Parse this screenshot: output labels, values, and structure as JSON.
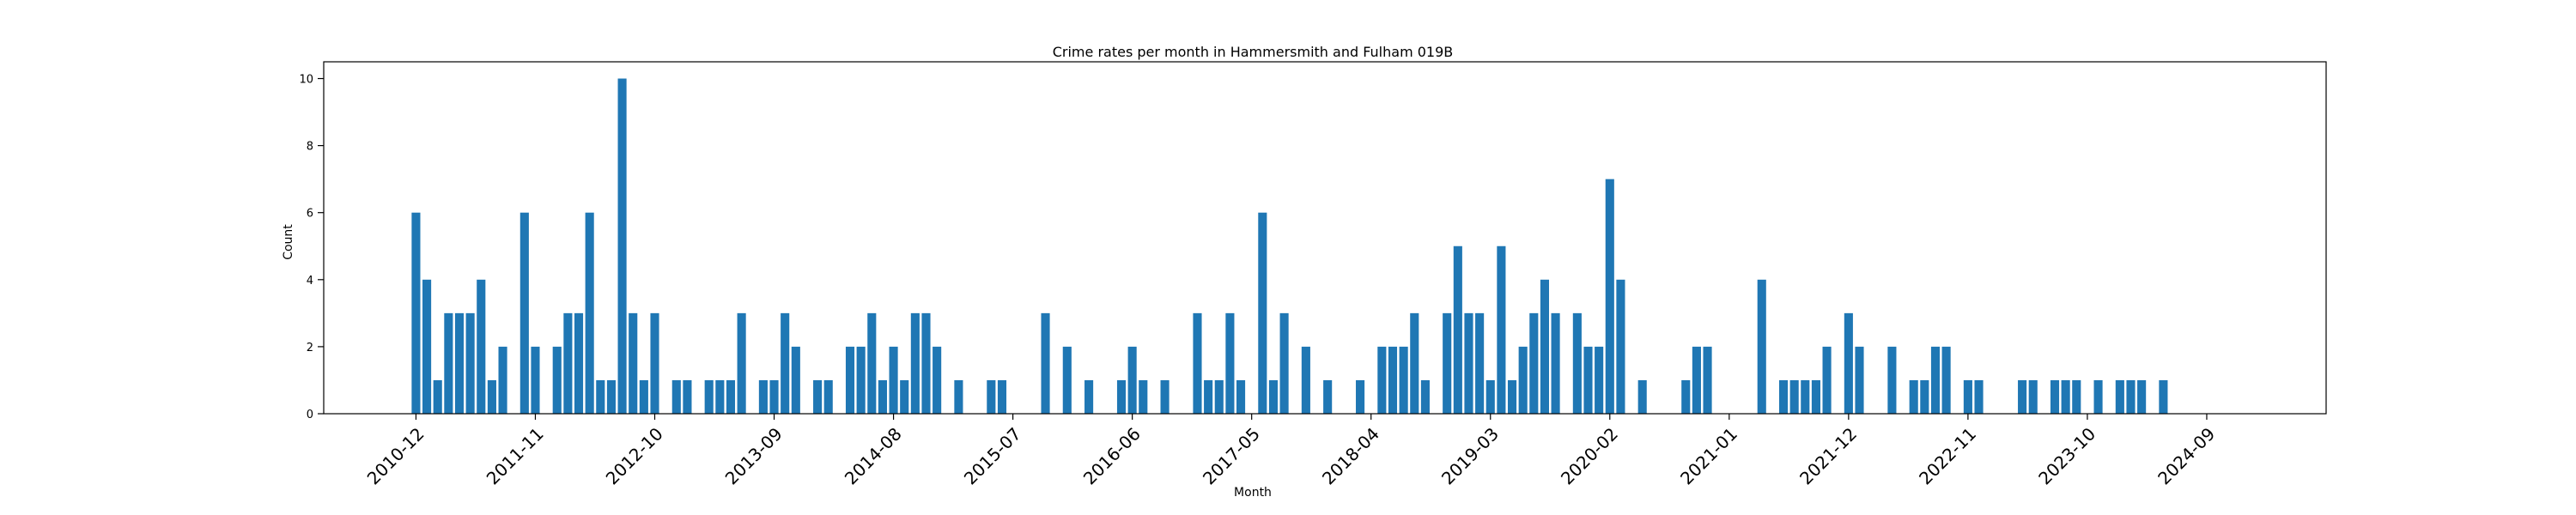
{
  "chart_data": {
    "type": "bar",
    "title": "Crime rates per month in Hammersmith and Fulham 019B",
    "xlabel": "Month",
    "ylabel": "Count",
    "ylim": [
      0,
      10.5
    ],
    "yticks": [
      0,
      2,
      4,
      6,
      8,
      10
    ],
    "x_start": "2010-12",
    "xlim_months": [
      -8.5,
      176
    ],
    "xtick_labels": [
      "2010-12",
      "2011-11",
      "2012-10",
      "2013-09",
      "2014-08",
      "2015-07",
      "2016-06",
      "2017-05",
      "2018-04",
      "2019-03",
      "2020-02",
      "2021-01",
      "2021-12",
      "2022-11",
      "2023-10",
      "2024-09"
    ],
    "xtick_step_months": 11,
    "bar_color": "#1f77b4",
    "grid": false,
    "bars": [
      [
        "2010-12",
        6
      ],
      [
        "2011-01",
        4
      ],
      [
        "2011-02",
        1
      ],
      [
        "2011-03",
        3
      ],
      [
        "2011-04",
        3
      ],
      [
        "2011-05",
        3
      ],
      [
        "2011-06",
        4
      ],
      [
        "2011-07",
        1
      ],
      [
        "2011-08",
        2
      ],
      [
        "2011-10",
        6
      ],
      [
        "2011-11",
        2
      ],
      [
        "2012-01",
        2
      ],
      [
        "2012-02",
        3
      ],
      [
        "2012-03",
        3
      ],
      [
        "2012-04",
        6
      ],
      [
        "2012-05",
        1
      ],
      [
        "2012-06",
        1
      ],
      [
        "2012-07",
        10
      ],
      [
        "2012-08",
        3
      ],
      [
        "2012-09",
        1
      ],
      [
        "2012-10",
        3
      ],
      [
        "2012-12",
        1
      ],
      [
        "2013-01",
        1
      ],
      [
        "2013-03",
        1
      ],
      [
        "2013-04",
        1
      ],
      [
        "2013-05",
        1
      ],
      [
        "2013-06",
        3
      ],
      [
        "2013-08",
        1
      ],
      [
        "2013-09",
        1
      ],
      [
        "2013-10",
        3
      ],
      [
        "2013-11",
        2
      ],
      [
        "2014-01",
        1
      ],
      [
        "2014-02",
        1
      ],
      [
        "2014-04",
        2
      ],
      [
        "2014-05",
        2
      ],
      [
        "2014-06",
        3
      ],
      [
        "2014-07",
        1
      ],
      [
        "2014-08",
        2
      ],
      [
        "2014-09",
        1
      ],
      [
        "2014-10",
        3
      ],
      [
        "2014-11",
        3
      ],
      [
        "2014-12",
        2
      ],
      [
        "2015-02",
        1
      ],
      [
        "2015-05",
        1
      ],
      [
        "2015-06",
        1
      ],
      [
        "2015-10",
        3
      ],
      [
        "2015-12",
        2
      ],
      [
        "2016-02",
        1
      ],
      [
        "2016-05",
        1
      ],
      [
        "2016-06",
        2
      ],
      [
        "2016-07",
        1
      ],
      [
        "2016-09",
        1
      ],
      [
        "2016-12",
        3
      ],
      [
        "2017-01",
        1
      ],
      [
        "2017-02",
        1
      ],
      [
        "2017-03",
        3
      ],
      [
        "2017-04",
        1
      ],
      [
        "2017-06",
        6
      ],
      [
        "2017-07",
        1
      ],
      [
        "2017-08",
        3
      ],
      [
        "2017-10",
        2
      ],
      [
        "2017-12",
        1
      ],
      [
        "2018-03",
        1
      ],
      [
        "2018-05",
        2
      ],
      [
        "2018-06",
        2
      ],
      [
        "2018-07",
        2
      ],
      [
        "2018-08",
        3
      ],
      [
        "2018-09",
        1
      ],
      [
        "2018-11",
        3
      ],
      [
        "2018-12",
        5
      ],
      [
        "2019-01",
        3
      ],
      [
        "2019-02",
        3
      ],
      [
        "2019-03",
        1
      ],
      [
        "2019-04",
        5
      ],
      [
        "2019-05",
        1
      ],
      [
        "2019-06",
        2
      ],
      [
        "2019-07",
        3
      ],
      [
        "2019-08",
        4
      ],
      [
        "2019-09",
        3
      ],
      [
        "2019-11",
        3
      ],
      [
        "2019-12",
        2
      ],
      [
        "2020-01",
        2
      ],
      [
        "2020-02",
        7
      ],
      [
        "2020-03",
        4
      ],
      [
        "2020-05",
        1
      ],
      [
        "2020-09",
        1
      ],
      [
        "2020-10",
        2
      ],
      [
        "2020-11",
        2
      ],
      [
        "2021-04",
        4
      ],
      [
        "2021-06",
        1
      ],
      [
        "2021-07",
        1
      ],
      [
        "2021-08",
        1
      ],
      [
        "2021-09",
        1
      ],
      [
        "2021-10",
        2
      ],
      [
        "2021-12",
        3
      ],
      [
        "2022-01",
        2
      ],
      [
        "2022-04",
        2
      ],
      [
        "2022-06",
        1
      ],
      [
        "2022-07",
        1
      ],
      [
        "2022-08",
        2
      ],
      [
        "2022-09",
        2
      ],
      [
        "2022-11",
        1
      ],
      [
        "2022-12",
        1
      ],
      [
        "2023-04",
        1
      ],
      [
        "2023-05",
        1
      ],
      [
        "2023-07",
        1
      ],
      [
        "2023-08",
        1
      ],
      [
        "2023-09",
        1
      ],
      [
        "2023-11",
        1
      ],
      [
        "2024-01",
        1
      ],
      [
        "2024-02",
        1
      ],
      [
        "2024-03",
        1
      ],
      [
        "2024-05",
        1
      ]
    ]
  }
}
